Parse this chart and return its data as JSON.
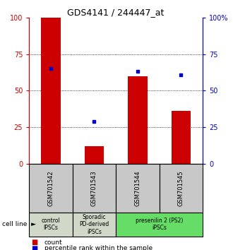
{
  "title": "GDS4141 / 244447_at",
  "samples": [
    "GSM701542",
    "GSM701543",
    "GSM701544",
    "GSM701545"
  ],
  "counts": [
    100,
    12,
    60,
    36
  ],
  "percentiles": [
    65,
    29,
    63,
    61
  ],
  "groups": [
    {
      "label": "control\nIPSCs",
      "start": 0,
      "end": 1,
      "color": "#d0d8c8"
    },
    {
      "label": "Sporadic\nPD-derived\niPSCs",
      "start": 1,
      "end": 2,
      "color": "#d0d8c8"
    },
    {
      "label": "presenilin 2 (PS2)\niPSCs",
      "start": 2,
      "end": 4,
      "color": "#66dd66"
    }
  ],
  "bar_color": "#cc0000",
  "dot_color": "#0000cc",
  "bar_width": 0.45,
  "ylim": [
    0,
    100
  ],
  "grid_lines": [
    25,
    50,
    75
  ],
  "left_axis_color": "#cc0000",
  "right_axis_color": "#0000cc",
  "title_fontsize": 9,
  "tick_fontsize": 7,
  "sample_fontsize": 6,
  "group_fontsize": 5.5,
  "cell_line_fontsize": 6.5,
  "legend_fontsize": 6.5,
  "gsm_box_color": "#c8c8c8",
  "cell_line_label": "cell line"
}
